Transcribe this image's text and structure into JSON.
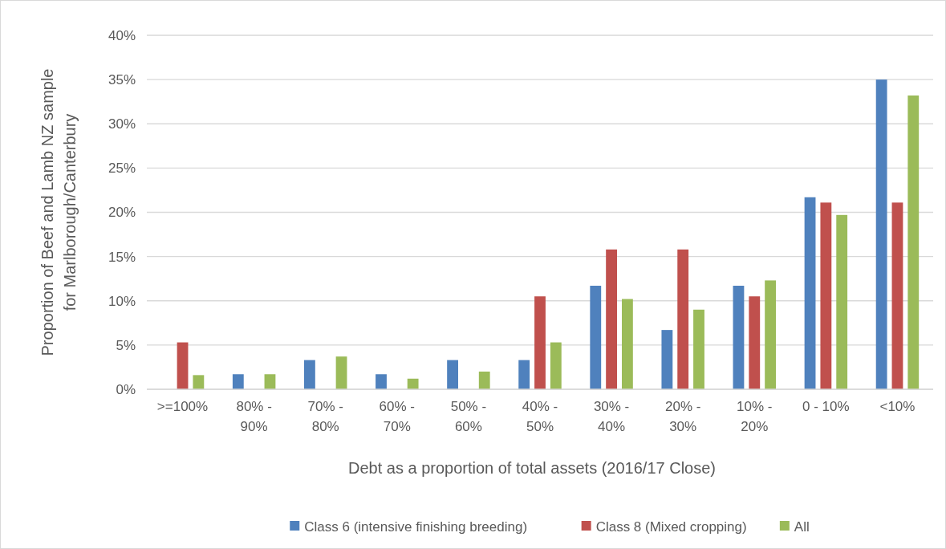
{
  "chart_data": {
    "type": "bar",
    "xlabel": "Debt as a proportion of total assets (2016/17 Close)",
    "ylabel": "Proportion of Beef and Lamb NZ sample for Marlborough/Canterbury",
    "categories": [
      ">=100%",
      "80% - 90%",
      "70% - 80%",
      "60% - 70%",
      "50% - 60%",
      "40% - 50%",
      "30% - 40%",
      "20% - 30%",
      "10% - 20%",
      "0 - 10%",
      "<10%"
    ],
    "series": [
      {
        "name": "Class 6 (intensive finishing breeding)",
        "color": "#4f81bd",
        "values": [
          0,
          1.7,
          3.3,
          1.7,
          3.3,
          3.3,
          11.7,
          6.7,
          11.7,
          21.7,
          35.0
        ]
      },
      {
        "name": "Class 8 (Mixed cropping)",
        "color": "#c0504d",
        "values": [
          5.3,
          0,
          0,
          0,
          0,
          10.5,
          15.8,
          15.8,
          10.5,
          21.1,
          21.1
        ]
      },
      {
        "name": "All",
        "color": "#9bbb59",
        "values": [
          1.6,
          1.7,
          3.7,
          1.2,
          2.0,
          5.3,
          10.2,
          9.0,
          12.3,
          19.7,
          33.2
        ]
      }
    ],
    "ylim": [
      0,
      40
    ],
    "yticks": [
      {
        "value": 0,
        "label": "0%"
      },
      {
        "value": 5,
        "label": "5%"
      },
      {
        "value": 10,
        "label": "10%"
      },
      {
        "value": 15,
        "label": "15%"
      },
      {
        "value": 20,
        "label": "20%"
      },
      {
        "value": 25,
        "label": "25%"
      },
      {
        "value": 30,
        "label": "30%"
      },
      {
        "value": 35,
        "label": "35%"
      },
      {
        "value": 40,
        "label": "40%"
      }
    ],
    "grid": "y",
    "legend": "bottom"
  }
}
